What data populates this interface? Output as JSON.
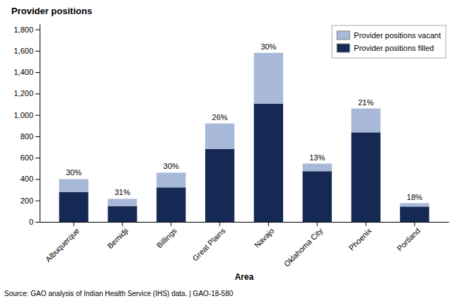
{
  "chart_data": {
    "type": "bar",
    "stacked": true,
    "ylabel": "Provider positions",
    "xlabel": "Area",
    "source": "Source: GAO analysis of Indian Health Service (IHS) data.  |  GAO-18-580",
    "categories": [
      "Albuquerque",
      "Bemidji",
      "Billings",
      "Great Plains",
      "Navajo",
      "Oklahoma City",
      "Phoenix",
      "Portland"
    ],
    "series": [
      {
        "name": "Provider positions filled",
        "color": "#162955",
        "values": [
          280,
          148,
          322,
          681,
          1106,
          474,
          837,
          143
        ]
      },
      {
        "name": "Provider positions vacant",
        "color": "#a8b8d8",
        "values": [
          120,
          67,
          138,
          239,
          474,
          71,
          223,
          32
        ]
      }
    ],
    "annotations": [
      "30%",
      "31%",
      "30%",
      "26%",
      "30%",
      "13%",
      "21%",
      "18%"
    ],
    "ylim": [
      0,
      1850
    ],
    "yticks": [
      0,
      200,
      400,
      600,
      800,
      {
        "value": 1000,
        "label": "1,000"
      },
      {
        "value": 1200,
        "label": "1,200"
      },
      {
        "value": 1400,
        "label": "1,400"
      },
      {
        "value": 1600,
        "label": "1,600"
      },
      {
        "value": 1800,
        "label": "1,800"
      }
    ],
    "grid": false,
    "legend": "upper right"
  }
}
